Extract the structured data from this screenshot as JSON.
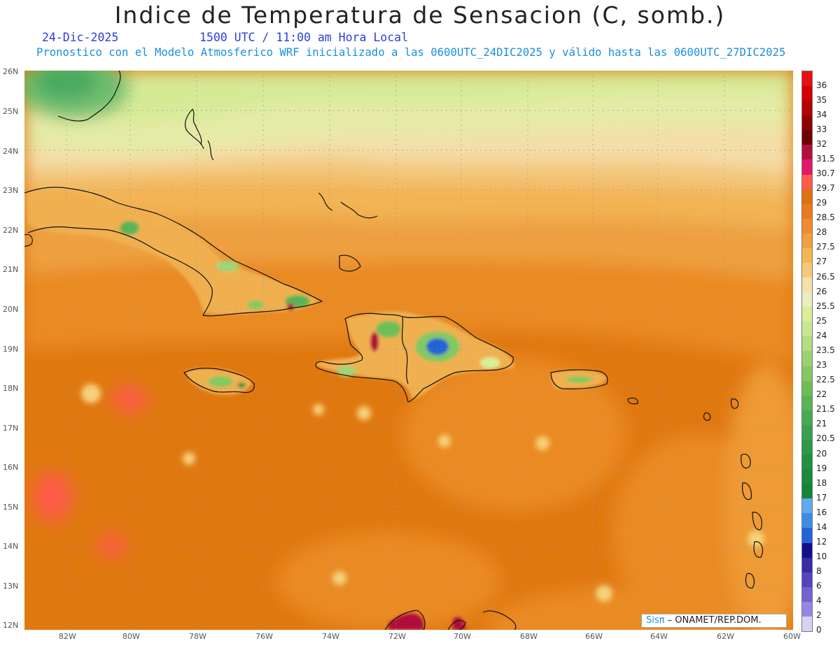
{
  "title": "Indice de Temperatura de Sensacion (C, somb.)",
  "date": "24-Dic-2025",
  "time": "1500 UTC / 11:00 am Hora Local",
  "forecast": "Pronostico con el Modelo Atmosferico WRF inicializado a las 0600UTC_24DIC2025 y válido hasta las  0600UTC_27DIC2025",
  "lat_labels": [
    "26N",
    "25N",
    "24N",
    "23N",
    "22N",
    "21N",
    "20N",
    "19N",
    "18N",
    "17N",
    "16N",
    "15N",
    "14N",
    "13N",
    "12N"
  ],
  "lon_labels": [
    "82W",
    "80W",
    "78W",
    "76W",
    "74W",
    "72W",
    "70W",
    "68W",
    "66W",
    "64W",
    "62W",
    "60W"
  ],
  "colorbar": {
    "labels": [
      "36",
      "35",
      "34",
      "33",
      "32",
      "31.5",
      "30.7",
      "29.7",
      "29",
      "28.5",
      "28",
      "27.5",
      "27",
      "26.5",
      "26",
      "25.5",
      "25",
      "24",
      "23.5",
      "23",
      "22.5",
      "22",
      "21.5",
      "21",
      "20.5",
      "20",
      "19",
      "18",
      "17",
      "16",
      "14",
      "12",
      "10",
      "8",
      "6",
      "4",
      "2",
      "0"
    ],
    "colors": [
      "#e81010",
      "#d20000",
      "#b50000",
      "#900000",
      "#700000",
      "#b0103c",
      "#e2186a",
      "#ff5a4a",
      "#e07010",
      "#ea7a1c",
      "#ee8c2e",
      "#f0a040",
      "#f3b650",
      "#f5c87a",
      "#f5e2a6",
      "#eaeebc",
      "#d8ee98",
      "#c6e890",
      "#b0de80",
      "#9ad270",
      "#84c862",
      "#6ebe58",
      "#5ab454",
      "#48aa50",
      "#3aa050",
      "#2e9848",
      "#229040",
      "#1a8a3e",
      "#148438",
      "#62a8ee",
      "#3c8ce6",
      "#2464d6",
      "#10108a",
      "#3a2aa6",
      "#5444be",
      "#7262d2",
      "#9686e4",
      "#d6d2f6"
    ]
  },
  "credit": {
    "logo": "Sisπ",
    "text": "– ONAMET/REP.DOM."
  }
}
